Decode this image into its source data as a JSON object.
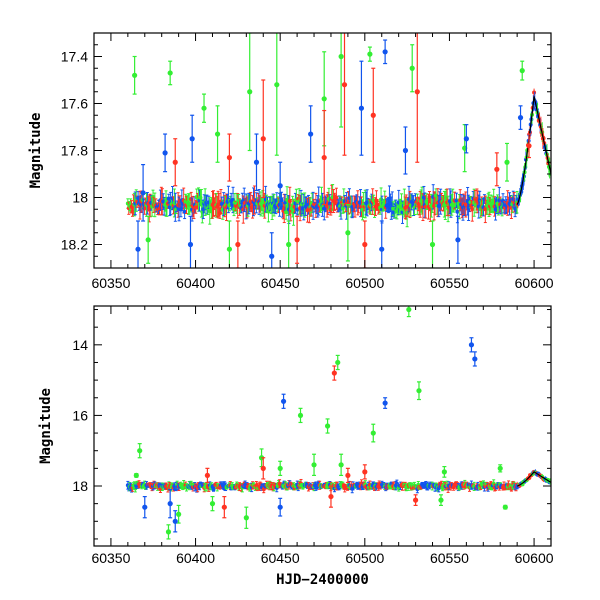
{
  "colors": {
    "green": "#33ee33",
    "blue": "#1155ee",
    "red": "#ff3322",
    "model": "#000000"
  },
  "chart_data": [
    {
      "type": "scatter",
      "title": "",
      "xlabel": "",
      "ylabel": "Magnitude",
      "xlim": [
        60340,
        60610
      ],
      "ylim": [
        18.3,
        17.3
      ],
      "y_inverted": true,
      "xticks": [
        60350,
        60400,
        60450,
        60500,
        60550,
        60600
      ],
      "xtick_labels": [
        "60350",
        "60400",
        "60450",
        "60500",
        "60550",
        "60600"
      ],
      "yticks": [
        17.4,
        17.6,
        17.8,
        18,
        18.2
      ],
      "ytick_labels": [
        "17.4",
        "17.6",
        "17.8",
        "18",
        "18.2"
      ],
      "baseline_mag": 18.03,
      "outburst": {
        "start": 60590,
        "peak_x": 60600,
        "peak_mag": 17.57,
        "end": 60610,
        "end_mag": 17.9
      },
      "series": [
        {
          "color_key": "green",
          "points": [
            {
              "x": 60364,
              "y": 17.48,
              "err": 0.08
            },
            {
              "x": 60385,
              "y": 17.47,
              "err": 0.05
            },
            {
              "x": 60405,
              "y": 17.62,
              "err": 0.06
            },
            {
              "x": 60413,
              "y": 17.73,
              "err": 0.12
            },
            {
              "x": 60432,
              "y": 17.55,
              "err": 0.25
            },
            {
              "x": 60448,
              "y": 17.52,
              "err": 0.3
            },
            {
              "x": 60476,
              "y": 17.58,
              "err": 0.2
            },
            {
              "x": 60486,
              "y": 17.4,
              "err": 0.3
            },
            {
              "x": 60503,
              "y": 17.39,
              "err": 0.03
            },
            {
              "x": 60528,
              "y": 17.45,
              "err": 0.1
            },
            {
              "x": 60559,
              "y": 17.79,
              "err": 0.1
            },
            {
              "x": 60584,
              "y": 17.85,
              "err": 0.08
            },
            {
              "x": 60593,
              "y": 17.46,
              "err": 0.04
            },
            {
              "x": 60372,
              "y": 18.18,
              "err": 0.1
            },
            {
              "x": 60420,
              "y": 18.22,
              "err": 0.12
            },
            {
              "x": 60455,
              "y": 18.2,
              "err": 0.1
            },
            {
              "x": 60490,
              "y": 18.15,
              "err": 0.12
            },
            {
              "x": 60540,
              "y": 18.2,
              "err": 0.1
            }
          ]
        },
        {
          "color_key": "blue",
          "points": [
            {
              "x": 60369,
              "y": 17.98,
              "err": 0.12
            },
            {
              "x": 60382,
              "y": 17.81,
              "err": 0.08
            },
            {
              "x": 60398,
              "y": 17.75,
              "err": 0.1
            },
            {
              "x": 60436,
              "y": 17.85,
              "err": 0.12
            },
            {
              "x": 60450,
              "y": 17.95,
              "err": 0.1
            },
            {
              "x": 60468,
              "y": 17.73,
              "err": 0.12
            },
            {
              "x": 60498,
              "y": 17.62,
              "err": 0.2
            },
            {
              "x": 60512,
              "y": 17.38,
              "err": 0.05
            },
            {
              "x": 60524,
              "y": 17.8,
              "err": 0.1
            },
            {
              "x": 60560,
              "y": 17.75,
              "err": 0.06
            },
            {
              "x": 60592,
              "y": 17.66,
              "err": 0.05
            },
            {
              "x": 60366,
              "y": 18.22,
              "err": 0.12
            },
            {
              "x": 60397,
              "y": 18.2,
              "err": 0.12
            },
            {
              "x": 60445,
              "y": 18.25,
              "err": 0.1
            },
            {
              "x": 60510,
              "y": 18.22,
              "err": 0.12
            },
            {
              "x": 60555,
              "y": 18.18,
              "err": 0.1
            }
          ]
        },
        {
          "color_key": "red",
          "points": [
            {
              "x": 60388,
              "y": 17.85,
              "err": 0.1
            },
            {
              "x": 60420,
              "y": 17.83,
              "err": 0.1
            },
            {
              "x": 60440,
              "y": 17.75,
              "err": 0.25
            },
            {
              "x": 60476,
              "y": 17.83,
              "err": 0.2
            },
            {
              "x": 60488,
              "y": 17.52,
              "err": 0.3
            },
            {
              "x": 60505,
              "y": 17.65,
              "err": 0.2
            },
            {
              "x": 60531,
              "y": 17.55,
              "err": 0.3
            },
            {
              "x": 60578,
              "y": 17.88,
              "err": 0.07
            },
            {
              "x": 60597,
              "y": 17.78,
              "err": 0.05
            },
            {
              "x": 60425,
              "y": 18.2,
              "err": 0.1
            },
            {
              "x": 60460,
              "y": 18.18,
              "err": 0.1
            },
            {
              "x": 60500,
              "y": 18.2,
              "err": 0.1
            }
          ]
        }
      ]
    },
    {
      "type": "scatter",
      "title": "",
      "xlabel": "HJD−2400000",
      "ylabel": "Magnitude",
      "xlim": [
        60340,
        60610
      ],
      "ylim": [
        19.7,
        12.9
      ],
      "y_inverted": true,
      "xticks": [
        60350,
        60400,
        60450,
        60500,
        60550,
        60600
      ],
      "xtick_labels": [
        "60350",
        "60400",
        "60450",
        "60500",
        "60550",
        "60600"
      ],
      "yticks": [
        14,
        16,
        18
      ],
      "ytick_labels": [
        "14",
        "16",
        "18"
      ],
      "baseline_mag": 18.0,
      "outburst": {
        "start": 60590,
        "peak_x": 60600,
        "peak_mag": 17.6,
        "end": 60610,
        "end_mag": 17.9
      },
      "series": [
        {
          "color_key": "green",
          "points": [
            {
              "x": 60367,
              "y": 17.0,
              "err": 0.2
            },
            {
              "x": 60365,
              "y": 17.7,
              "err": 0.05
            },
            {
              "x": 60439,
              "y": 17.2,
              "err": 0.25
            },
            {
              "x": 60450,
              "y": 17.5,
              "err": 0.2
            },
            {
              "x": 60462,
              "y": 16.0,
              "err": 0.2
            },
            {
              "x": 60470,
              "y": 17.4,
              "err": 0.3
            },
            {
              "x": 60478,
              "y": 16.3,
              "err": 0.2
            },
            {
              "x": 60484,
              "y": 14.5,
              "err": 0.2
            },
            {
              "x": 60486,
              "y": 17.4,
              "err": 0.3
            },
            {
              "x": 60505,
              "y": 16.5,
              "err": 0.25
            },
            {
              "x": 60526,
              "y": 13.0,
              "err": 0.2
            },
            {
              "x": 60532,
              "y": 15.3,
              "err": 0.25
            },
            {
              "x": 60547,
              "y": 17.6,
              "err": 0.15
            },
            {
              "x": 60580,
              "y": 17.5,
              "err": 0.1
            },
            {
              "x": 60384,
              "y": 19.3,
              "err": 0.2
            },
            {
              "x": 60390,
              "y": 18.8,
              "err": 0.25
            },
            {
              "x": 60430,
              "y": 18.9,
              "err": 0.3
            },
            {
              "x": 60410,
              "y": 18.5,
              "err": 0.2
            },
            {
              "x": 60545,
              "y": 18.4,
              "err": 0.15
            },
            {
              "x": 60583,
              "y": 18.6,
              "err": 0.05
            }
          ]
        },
        {
          "color_key": "blue",
          "points": [
            {
              "x": 60452,
              "y": 15.6,
              "err": 0.2
            },
            {
              "x": 60512,
              "y": 15.65,
              "err": 0.15
            },
            {
              "x": 60563,
              "y": 14.0,
              "err": 0.2
            },
            {
              "x": 60565,
              "y": 14.4,
              "err": 0.2
            },
            {
              "x": 60370,
              "y": 18.6,
              "err": 0.3
            },
            {
              "x": 60385,
              "y": 18.5,
              "err": 0.4
            },
            {
              "x": 60388,
              "y": 19.0,
              "err": 0.3
            },
            {
              "x": 60450,
              "y": 18.6,
              "err": 0.25
            }
          ]
        },
        {
          "color_key": "red",
          "points": [
            {
              "x": 60482,
              "y": 14.8,
              "err": 0.2
            },
            {
              "x": 60407,
              "y": 17.7,
              "err": 0.2
            },
            {
              "x": 60440,
              "y": 17.5,
              "err": 0.3
            },
            {
              "x": 60490,
              "y": 17.7,
              "err": 0.2
            },
            {
              "x": 60500,
              "y": 17.6,
              "err": 0.2
            },
            {
              "x": 60530,
              "y": 18.4,
              "err": 0.15
            },
            {
              "x": 60417,
              "y": 18.6,
              "err": 0.3
            },
            {
              "x": 60480,
              "y": 18.3,
              "err": 0.3
            }
          ]
        }
      ]
    }
  ]
}
